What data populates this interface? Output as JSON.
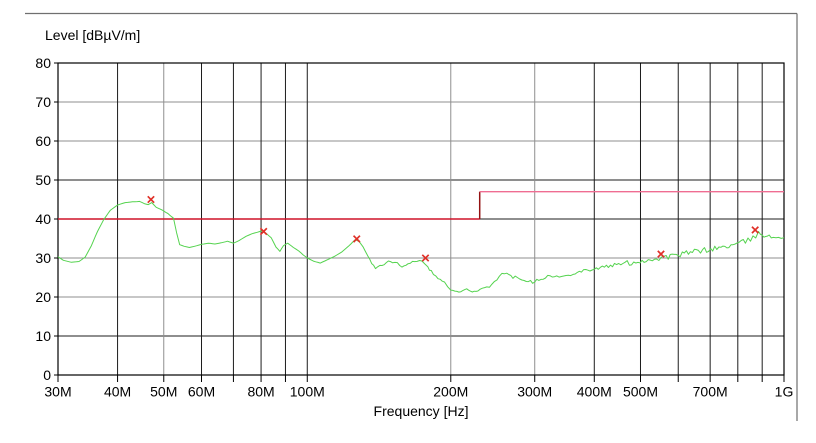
{
  "chart_data": {
    "type": "line",
    "title": "Level [dBµV/m]",
    "xlabel": "Frequency [Hz]",
    "x_scale": "log",
    "x_range_mhz": [
      30,
      1000
    ],
    "ylim": [
      0,
      80
    ],
    "grid": true,
    "y_ticks": [
      {
        "db": 80,
        "label": "80"
      },
      {
        "db": 70,
        "label": "70"
      },
      {
        "db": 60,
        "label": "60"
      },
      {
        "db": 50,
        "label": "50"
      },
      {
        "db": 40,
        "label": "40"
      },
      {
        "db": 30,
        "label": "30"
      },
      {
        "db": 20,
        "label": "20"
      },
      {
        "db": 10,
        "label": "10"
      },
      {
        "db": 0,
        "label": "0"
      }
    ],
    "x_ticks": [
      {
        "mhz": 30,
        "label": "30M"
      },
      {
        "mhz": 40,
        "label": "40M"
      },
      {
        "mhz": 50,
        "label": "50M"
      },
      {
        "mhz": 60,
        "label": "60M"
      },
      {
        "mhz": 80,
        "label": "80M"
      },
      {
        "mhz": 100,
        "label": "100M"
      },
      {
        "mhz": 200,
        "label": "200M"
      },
      {
        "mhz": 300,
        "label": "300M"
      },
      {
        "mhz": 400,
        "label": "400M"
      },
      {
        "mhz": 500,
        "label": "500M"
      },
      {
        "mhz": 700,
        "label": "700M"
      },
      {
        "mhz": 1000,
        "label": "1G"
      }
    ],
    "x_gridlines": [
      {
        "mhz": 40,
        "shade": "dark"
      },
      {
        "mhz": 50,
        "shade": "light"
      },
      {
        "mhz": 60,
        "shade": "dark"
      },
      {
        "mhz": 70,
        "shade": "dark"
      },
      {
        "mhz": 80,
        "shade": "dark"
      },
      {
        "mhz": 90,
        "shade": "dark"
      },
      {
        "mhz": 100,
        "shade": "dark"
      },
      {
        "mhz": 200,
        "shade": "light"
      },
      {
        "mhz": 300,
        "shade": "light"
      },
      {
        "mhz": 400,
        "shade": "dark"
      },
      {
        "mhz": 500,
        "shade": "dark"
      },
      {
        "mhz": 600,
        "shade": "dark"
      },
      {
        "mhz": 700,
        "shade": "dark"
      },
      {
        "mhz": 800,
        "shade": "dark"
      },
      {
        "mhz": 900,
        "shade": "dark"
      }
    ],
    "y_gridlines": [
      {
        "db": 70,
        "shade": "light"
      },
      {
        "db": 60,
        "shade": "light"
      },
      {
        "db": 50,
        "shade": "dark"
      },
      {
        "db": 40,
        "shade": "dark"
      },
      {
        "db": 30,
        "shade": "light"
      },
      {
        "db": 20,
        "shade": "light"
      },
      {
        "db": 10,
        "shade": "dark"
      }
    ],
    "limit_line": {
      "segments": [
        {
          "points": [
            [
              30,
              40
            ],
            [
              230,
              40
            ]
          ],
          "color": "#cf1228",
          "width": 1.5
        },
        {
          "points": [
            [
              230,
              40
            ],
            [
              230,
              47
            ]
          ],
          "color": "#931111",
          "width": 1.5
        },
        {
          "points": [
            [
              230,
              47
            ],
            [
              1000,
              47
            ]
          ],
          "color": "#ef6d92",
          "width": 1.3
        }
      ]
    },
    "markers": {
      "symbol": "x",
      "color": "#e03028",
      "points_mhz_db": [
        [
          47,
          45
        ],
        [
          81,
          36.8
        ],
        [
          127,
          34.9
        ],
        [
          177,
          30
        ],
        [
          552,
          31
        ],
        [
          870,
          37.2
        ]
      ]
    },
    "trace": {
      "color": "#55d34f",
      "width": 1,
      "points_mhz_db": [
        [
          30,
          30.3
        ],
        [
          30.8,
          29.4
        ],
        [
          32,
          28.9
        ],
        [
          33.2,
          29.1
        ],
        [
          34.2,
          30.2
        ],
        [
          35.2,
          33
        ],
        [
          36.3,
          36.8
        ],
        [
          37.4,
          39.8
        ],
        [
          38.6,
          42.2
        ],
        [
          40,
          43.6
        ],
        [
          41.5,
          44.2
        ],
        [
          43,
          44.4
        ],
        [
          44.5,
          44.5
        ],
        [
          45.6,
          43.9
        ],
        [
          46.4,
          43.7
        ],
        [
          47.2,
          44.2
        ],
        [
          48.2,
          43
        ],
        [
          49.6,
          42.3
        ],
        [
          51,
          41.4
        ],
        [
          52.4,
          40.2
        ],
        [
          53.2,
          36.5
        ],
        [
          54,
          33.4
        ],
        [
          55.2,
          33
        ],
        [
          56.6,
          32.7
        ],
        [
          58,
          33
        ],
        [
          60,
          33.5
        ],
        [
          62,
          33.8
        ],
        [
          64,
          33.6
        ],
        [
          66,
          33.9
        ],
        [
          68,
          34.3
        ],
        [
          70,
          33.8
        ],
        [
          72,
          34.5
        ],
        [
          74.5,
          35.6
        ],
        [
          76.5,
          36.2
        ],
        [
          78.5,
          36.6
        ],
        [
          80.5,
          37
        ],
        [
          82,
          36.3
        ],
        [
          84,
          35.2
        ],
        [
          86,
          32.8
        ],
        [
          87.6,
          31.7
        ],
        [
          89.2,
          33.2
        ],
        [
          91,
          33.8
        ],
        [
          93.5,
          32.7
        ],
        [
          96,
          31.8
        ],
        [
          98,
          30.8
        ],
        [
          100,
          30
        ],
        [
          103,
          29.2
        ],
        [
          106.5,
          28.7
        ],
        [
          110,
          29.5
        ],
        [
          114,
          30.4
        ],
        [
          118,
          31.5
        ],
        [
          122,
          33
        ],
        [
          126,
          34.7
        ],
        [
          128.5,
          34.2
        ],
        [
          131,
          32.8
        ],
        [
          134,
          30.5
        ],
        [
          136.5,
          28.7
        ],
        [
          139,
          27.4
        ],
        [
          142,
          27.9
        ],
        [
          145,
          28.5
        ],
        [
          148,
          29.1
        ],
        [
          151,
          28.9
        ],
        [
          154.5,
          28.6
        ],
        [
          158,
          27.9
        ],
        [
          161,
          28.3
        ],
        [
          164.5,
          28.8
        ],
        [
          168,
          29.2
        ],
        [
          172,
          29.5
        ],
        [
          174,
          29.3
        ],
        [
          176.5,
          28.7
        ],
        [
          179,
          27.6
        ],
        [
          182,
          26.6
        ],
        [
          186,
          25.3
        ],
        [
          190,
          24.4
        ],
        [
          194,
          23.9
        ],
        [
          197,
          22.6
        ],
        [
          200,
          21.8
        ],
        [
          204,
          21.4
        ],
        [
          208,
          21.3
        ],
        [
          212,
          21.6
        ],
        [
          216,
          21.9
        ],
        [
          220,
          21.7
        ],
        [
          224,
          21.3
        ],
        [
          228,
          21.5
        ],
        [
          233,
          22.1
        ],
        [
          238,
          22.4
        ],
        [
          244,
          23.4
        ],
        [
          250,
          24.8
        ],
        [
          256,
          25.9
        ],
        [
          262,
          25.8
        ],
        [
          270,
          25.2
        ],
        [
          279,
          24.8
        ],
        [
          288,
          24.4
        ],
        [
          297,
          23.9
        ],
        [
          306,
          24.6
        ],
        [
          316,
          25.2
        ],
        [
          330,
          25.3
        ],
        [
          345,
          25.1
        ],
        [
          361,
          26.2
        ],
        [
          380,
          26.8
        ],
        [
          400,
          27.2
        ],
        [
          420,
          27.7
        ],
        [
          441,
          28.2
        ],
        [
          464,
          28.6
        ],
        [
          489,
          29
        ],
        [
          514,
          29.4
        ],
        [
          540,
          29.8
        ],
        [
          566,
          30.2
        ],
        [
          594,
          30.7
        ],
        [
          624,
          31.2
        ],
        [
          655,
          31.7
        ],
        [
          688,
          32.1
        ],
        [
          723,
          32.5
        ],
        [
          759,
          33
        ],
        [
          797,
          33.5
        ],
        [
          830,
          34.3
        ],
        [
          861,
          35
        ],
        [
          884,
          36.3
        ],
        [
          900,
          36.2
        ],
        [
          915,
          35.8
        ],
        [
          931,
          35.3
        ],
        [
          950,
          35.5
        ],
        [
          974,
          35.4
        ],
        [
          1000,
          35.2
        ]
      ],
      "noise_bands": [
        {
          "from_mhz": 135,
          "to_mhz": 240,
          "amp_db": 0.25
        },
        {
          "from_mhz": 240,
          "to_mhz": 460,
          "amp_db": 0.45
        },
        {
          "from_mhz": 460,
          "to_mhz": 1000,
          "amp_db": 0.7
        }
      ]
    },
    "colors": {
      "grid_dark": "#1c1c1c",
      "grid_light": "#8f8f8f",
      "plot_border": "#000000",
      "window_frame": "#6f6f6f",
      "text": "#000000",
      "background": "#ffffff"
    },
    "legend": null
  }
}
